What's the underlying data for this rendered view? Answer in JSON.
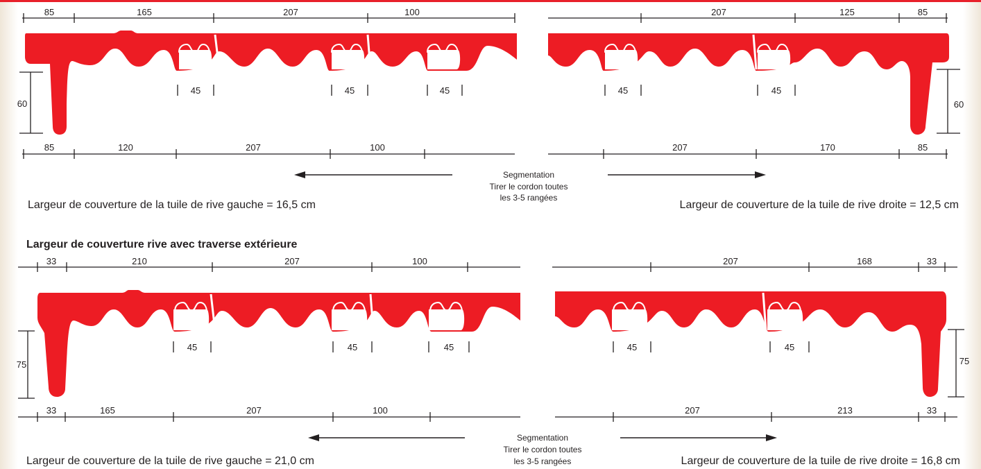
{
  "colors": {
    "tile": "#ed1c24",
    "line": "#231f20",
    "accent_bar": "#e8202a",
    "page_edge": "#efe6d8"
  },
  "section1": {
    "left": {
      "top_dims": [
        "85",
        "165",
        "207",
        "100"
      ],
      "gap_dims": [
        "45",
        "45",
        "45"
      ],
      "height_dim": "60",
      "bottom_dims": [
        "85",
        "120",
        "207",
        "100"
      ],
      "caption": "Largeur de couverture de la tuile de rive gauche = 16,5 cm"
    },
    "right": {
      "top_dims": [
        "207",
        "125",
        "85"
      ],
      "gap_dims": [
        "45",
        "45"
      ],
      "height_dim": "60",
      "bottom_dims": [
        "207",
        "170",
        "85"
      ],
      "caption": "Largeur de couverture de la tuile de rive droite = 12,5 cm"
    },
    "segmentation": [
      "Segmentation",
      "Tirer le cordon toutes",
      "les 3-5 rangées"
    ]
  },
  "section2": {
    "heading": "Largeur de couverture rive avec traverse extérieure",
    "left": {
      "top_dims": [
        "33",
        "210",
        "207",
        "100"
      ],
      "gap_dims": [
        "45",
        "45",
        "45"
      ],
      "height_dim": "75",
      "bottom_dims": [
        "33",
        "165",
        "207",
        "100"
      ],
      "caption": "Largeur de couverture de la tuile de rive gauche = 21,0 cm"
    },
    "right": {
      "top_dims": [
        "207",
        "168",
        "33"
      ],
      "gap_dims": [
        "45",
        "45"
      ],
      "height_dim": "75",
      "bottom_dims": [
        "207",
        "213",
        "33"
      ],
      "caption": "Largeur de couverture de la tuile de rive droite = 16,8 cm"
    },
    "segmentation": [
      "Segmentation",
      "Tirer le cordon toutes",
      "les 3-5 rangées"
    ]
  }
}
